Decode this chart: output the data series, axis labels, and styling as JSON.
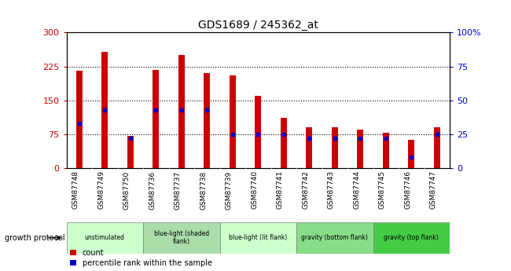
{
  "title": "GDS1689 / 245362_at",
  "samples": [
    "GSM87748",
    "GSM87749",
    "GSM87750",
    "GSM87736",
    "GSM87737",
    "GSM87738",
    "GSM87739",
    "GSM87740",
    "GSM87741",
    "GSM87742",
    "GSM87743",
    "GSM87744",
    "GSM87745",
    "GSM87746",
    "GSM87747"
  ],
  "counts": [
    215,
    258,
    72,
    218,
    250,
    210,
    205,
    160,
    112,
    90,
    90,
    85,
    78,
    62,
    90
  ],
  "percentiles": [
    33,
    43,
    22,
    43,
    43,
    43,
    25,
    25,
    25,
    22,
    22,
    22,
    22,
    8,
    25
  ],
  "ylim_left": [
    0,
    300
  ],
  "ylim_right": [
    0,
    100
  ],
  "yticks_left": [
    0,
    75,
    150,
    225,
    300
  ],
  "yticks_right": [
    0,
    25,
    50,
    75,
    100
  ],
  "bar_color": "#cc0000",
  "dot_color": "#0000cc",
  "bar_width": 0.25,
  "groups": [
    {
      "label": "unstimulated",
      "indices": [
        0,
        1,
        2
      ],
      "color": "#ccffcc"
    },
    {
      "label": "blue-light (shaded\nflank)",
      "indices": [
        3,
        4,
        5
      ],
      "color": "#aaddaa"
    },
    {
      "label": "blue-light (lit flank)",
      "indices": [
        6,
        7,
        8
      ],
      "color": "#ccffcc"
    },
    {
      "label": "gravity (bottom flank)",
      "indices": [
        9,
        10,
        11
      ],
      "color": "#88dd88"
    },
    {
      "label": "gravity (top flank)",
      "indices": [
        12,
        13,
        14
      ],
      "color": "#44cc44"
    }
  ],
  "growth_protocol_label": "growth protocol",
  "legend_count": "count",
  "legend_percentile": "percentile rank within the sample",
  "ticklabel_bg": "#d0d0d0",
  "plot_bg": "#ffffff"
}
